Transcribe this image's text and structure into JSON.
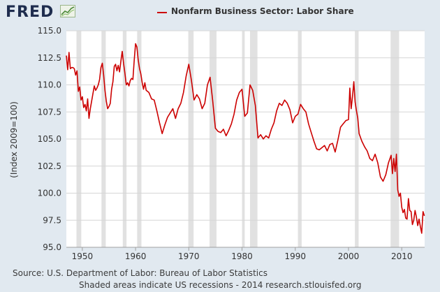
{
  "brand": {
    "logo_text": "FRED",
    "logo_icon": "chart-line-icon"
  },
  "chart_data": {
    "type": "line",
    "title": "",
    "xlabel": "",
    "ylabel": "(Index 2009=100)",
    "ylim": [
      95.0,
      115.0
    ],
    "xlim": [
      1947,
      2014.3
    ],
    "y_ticks": [
      "95.0",
      "97.5",
      "100.0",
      "102.5",
      "105.0",
      "107.5",
      "110.0",
      "112.5",
      "115.0"
    ],
    "x_ticks": [
      "1950",
      "1960",
      "1970",
      "1980",
      "1990",
      "2000",
      "2010"
    ],
    "grid": true,
    "legend_position": "top",
    "recessions": [
      [
        1948.9,
        1949.8
      ],
      [
        1953.6,
        1954.4
      ],
      [
        1957.6,
        1958.3
      ],
      [
        1960.3,
        1961.1
      ],
      [
        1969.9,
        1970.9
      ],
      [
        1973.9,
        1975.2
      ],
      [
        1980.0,
        1980.5
      ],
      [
        1981.5,
        1982.9
      ],
      [
        1990.5,
        1991.2
      ],
      [
        2001.2,
        2001.9
      ],
      [
        2007.9,
        2009.5
      ]
    ],
    "series": [
      {
        "name": "Nonfarm Business Sector: Labor Share",
        "color": "#cc0000",
        "x": [
          1947.0,
          1947.25,
          1947.5,
          1947.75,
          1948.0,
          1948.25,
          1948.5,
          1948.75,
          1949.0,
          1949.25,
          1949.5,
          1949.75,
          1950.0,
          1950.25,
          1950.5,
          1950.75,
          1951.0,
          1951.25,
          1951.5,
          1951.75,
          1952.0,
          1952.25,
          1952.5,
          1952.75,
          1953.0,
          1953.25,
          1953.5,
          1953.75,
          1954.0,
          1954.25,
          1954.5,
          1954.75,
          1955.0,
          1955.25,
          1955.5,
          1955.75,
          1956.0,
          1956.25,
          1956.5,
          1956.75,
          1957.0,
          1957.25,
          1957.5,
          1957.75,
          1958.0,
          1958.25,
          1958.5,
          1958.75,
          1959.0,
          1959.25,
          1959.5,
          1959.75,
          1960.0,
          1960.25,
          1960.5,
          1960.75,
          1961.0,
          1961.25,
          1961.5,
          1961.75,
          1962.0,
          1962.5,
          1963.0,
          1963.5,
          1964.0,
          1964.5,
          1965.0,
          1965.5,
          1966.0,
          1966.5,
          1967.0,
          1967.5,
          1968.0,
          1968.5,
          1969.0,
          1969.5,
          1970.0,
          1970.5,
          1971.0,
          1971.5,
          1972.0,
          1972.5,
          1973.0,
          1973.5,
          1974.0,
          1974.5,
          1975.0,
          1975.5,
          1976.0,
          1976.5,
          1977.0,
          1977.5,
          1978.0,
          1978.5,
          1979.0,
          1979.5,
          1980.0,
          1980.5,
          1981.0,
          1981.5,
          1982.0,
          1982.5,
          1983.0,
          1983.5,
          1984.0,
          1984.5,
          1985.0,
          1985.5,
          1986.0,
          1986.5,
          1987.0,
          1987.5,
          1988.0,
          1988.5,
          1989.0,
          1989.5,
          1990.0,
          1990.5,
          1991.0,
          1991.5,
          1992.0,
          1992.5,
          1993.0,
          1993.5,
          1994.0,
          1994.5,
          1995.0,
          1995.5,
          1996.0,
          1996.5,
          1997.0,
          1997.5,
          1998.0,
          1998.5,
          1999.0,
          1999.5,
          2000.0,
          2000.25,
          2000.5,
          2000.75,
          2001.0,
          2001.25,
          2001.5,
          2001.75,
          2002.0,
          2002.5,
          2003.0,
          2003.5,
          2004.0,
          2004.5,
          2005.0,
          2005.5,
          2006.0,
          2006.5,
          2007.0,
          2007.5,
          2008.0,
          2008.25,
          2008.5,
          2008.75,
          2009.0,
          2009.25,
          2009.5,
          2009.75,
          2010.0,
          2010.25,
          2010.5,
          2010.75,
          2011.0,
          2011.25,
          2011.5,
          2011.75,
          2012.0,
          2012.25,
          2012.5,
          2012.75,
          2013.0,
          2013.25,
          2013.5,
          2013.75,
          2014.0,
          2014.25
        ],
        "values": [
          112.7,
          111.4,
          113.0,
          111.5,
          111.6,
          111.6,
          111.5,
          110.9,
          111.3,
          109.4,
          109.8,
          108.6,
          108.9,
          107.9,
          108.2,
          107.6,
          108.7,
          106.9,
          107.8,
          108.5,
          109.2,
          109.9,
          109.5,
          109.7,
          110.0,
          110.5,
          111.6,
          112.0,
          110.9,
          109.5,
          108.5,
          107.8,
          108.0,
          108.3,
          109.6,
          110.3,
          111.7,
          111.9,
          111.3,
          111.8,
          111.2,
          112.2,
          113.1,
          112.0,
          111.1,
          110.0,
          110.2,
          109.9,
          110.4,
          110.6,
          110.5,
          112.3,
          113.8,
          113.5,
          112.3,
          111.5,
          111.0,
          110.2,
          109.6,
          110.2,
          109.5,
          109.3,
          108.7,
          108.6,
          107.6,
          106.5,
          105.5,
          106.3,
          107.0,
          107.4,
          107.8,
          106.9,
          107.8,
          108.3,
          109.3,
          110.8,
          111.9,
          110.4,
          108.6,
          109.1,
          108.7,
          107.8,
          108.3,
          110.0,
          110.7,
          108.5,
          106.0,
          105.7,
          105.6,
          105.9,
          105.3,
          105.8,
          106.4,
          107.3,
          108.6,
          109.3,
          109.6,
          107.1,
          107.4,
          110.0,
          109.5,
          108.1,
          105.1,
          105.4,
          105.0,
          105.3,
          105.1,
          105.9,
          106.5,
          107.6,
          108.3,
          108.1,
          108.6,
          108.3,
          107.7,
          106.5,
          107.1,
          107.3,
          108.2,
          107.8,
          107.5,
          106.4,
          105.6,
          104.8,
          104.1,
          104.0,
          104.2,
          104.4,
          103.9,
          104.5,
          104.6,
          103.8,
          104.9,
          106.1,
          106.4,
          106.7,
          106.8,
          109.7,
          107.8,
          108.9,
          110.3,
          108.4,
          107.6,
          106.9,
          105.5,
          104.8,
          104.3,
          103.9,
          103.2,
          103.0,
          103.6,
          102.8,
          101.5,
          101.1,
          101.7,
          102.8,
          103.5,
          101.8,
          103.2,
          102.0,
          103.6,
          100.3,
          99.7,
          100.0,
          98.7,
          98.2,
          98.5,
          97.7,
          97.6,
          99.5,
          98.4,
          98.3,
          97.1,
          97.5,
          98.4,
          97.8,
          97.0,
          97.6,
          96.9,
          96.3,
          98.3,
          97.9
        ]
      }
    ]
  },
  "footer": {
    "source": "Source: U.S. Department of Labor: Bureau of Labor Statistics",
    "notes": "Shaded areas indicate US recessions - 2014 research.stlouisfed.org"
  }
}
